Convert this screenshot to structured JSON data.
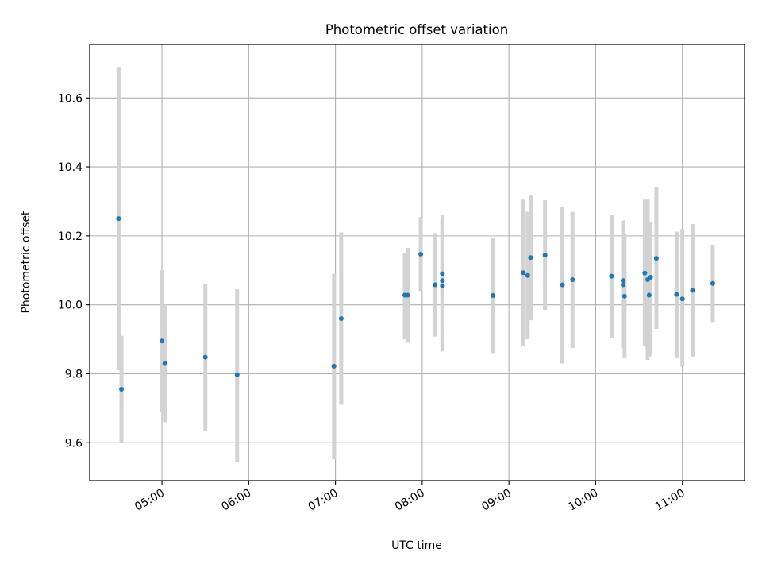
{
  "chart_data": {
    "type": "scatter",
    "title": "Photometric offset variation",
    "xlabel": "UTC time",
    "ylabel": "Photometric offset",
    "x_type": "time",
    "xlim": [
      "04:10",
      "11:43"
    ],
    "ylim": [
      9.49,
      10.755
    ],
    "x_ticks": [
      "05:00",
      "06:00",
      "07:00",
      "08:00",
      "09:00",
      "10:00",
      "11:00"
    ],
    "y_ticks": [
      9.6,
      9.8,
      10.0,
      10.2,
      10.4,
      10.6
    ],
    "y_tick_labels": [
      "9.6",
      "9.8",
      "10.0",
      "10.2",
      "10.4",
      "10.6"
    ],
    "grid": true,
    "marker_color": "#1f77b4",
    "errorbar_color": "#d3d3d3",
    "points": [
      {
        "x": "04:30",
        "y": 10.25,
        "ylow": 9.81,
        "yhigh": 10.69
      },
      {
        "x": "04:32",
        "y": 9.755,
        "ylow": 9.6,
        "yhigh": 9.91
      },
      {
        "x": "05:00",
        "y": 9.895,
        "ylow": 9.69,
        "yhigh": 10.1
      },
      {
        "x": "05:02",
        "y": 9.83,
        "ylow": 9.66,
        "yhigh": 10.0
      },
      {
        "x": "05:30",
        "y": 9.848,
        "ylow": 9.635,
        "yhigh": 10.06
      },
      {
        "x": "05:52",
        "y": 9.797,
        "ylow": 9.545,
        "yhigh": 10.045
      },
      {
        "x": "06:59",
        "y": 9.822,
        "ylow": 9.552,
        "yhigh": 10.09
      },
      {
        "x": "07:04",
        "y": 9.96,
        "ylow": 9.71,
        "yhigh": 10.21
      },
      {
        "x": "07:48",
        "y": 10.028,
        "ylow": 9.9,
        "yhigh": 10.15
      },
      {
        "x": "07:50",
        "y": 10.028,
        "ylow": 9.89,
        "yhigh": 10.165
      },
      {
        "x": "07:59",
        "y": 10.147,
        "ylow": 10.04,
        "yhigh": 10.255
      },
      {
        "x": "08:09",
        "y": 10.058,
        "ylow": 9.908,
        "yhigh": 10.208
      },
      {
        "x": "08:14",
        "y": 10.09,
        "ylow": 9.93,
        "yhigh": 10.26
      },
      {
        "x": "08:14",
        "y": 10.07,
        "ylow": 9.9,
        "yhigh": 10.245
      },
      {
        "x": "08:14",
        "y": 10.055,
        "ylow": 9.865,
        "yhigh": 10.245
      },
      {
        "x": "08:49",
        "y": 10.027,
        "ylow": 9.86,
        "yhigh": 10.195
      },
      {
        "x": "09:10",
        "y": 10.093,
        "ylow": 9.88,
        "yhigh": 10.305
      },
      {
        "x": "09:13",
        "y": 10.085,
        "ylow": 9.9,
        "yhigh": 10.27
      },
      {
        "x": "09:15",
        "y": 10.137,
        "ylow": 9.955,
        "yhigh": 10.318
      },
      {
        "x": "09:25",
        "y": 10.144,
        "ylow": 9.985,
        "yhigh": 10.303
      },
      {
        "x": "09:37",
        "y": 10.058,
        "ylow": 9.83,
        "yhigh": 10.285
      },
      {
        "x": "09:44",
        "y": 10.073,
        "ylow": 9.875,
        "yhigh": 10.27
      },
      {
        "x": "10:11",
        "y": 10.083,
        "ylow": 9.905,
        "yhigh": 10.26
      },
      {
        "x": "10:19",
        "y": 10.07,
        "ylow": 9.89,
        "yhigh": 10.245
      },
      {
        "x": "10:19",
        "y": 10.058,
        "ylow": 9.875,
        "yhigh": 10.24
      },
      {
        "x": "10:20",
        "y": 10.025,
        "ylow": 9.845,
        "yhigh": 10.205
      },
      {
        "x": "10:34",
        "y": 10.092,
        "ylow": 9.88,
        "yhigh": 10.305
      },
      {
        "x": "10:36",
        "y": 10.073,
        "ylow": 9.84,
        "yhigh": 10.305
      },
      {
        "x": "10:37",
        "y": 10.028,
        "ylow": 9.85,
        "yhigh": 10.205
      },
      {
        "x": "10:38",
        "y": 10.08,
        "ylow": 9.855,
        "yhigh": 10.24
      },
      {
        "x": "10:42",
        "y": 10.135,
        "ylow": 9.93,
        "yhigh": 10.34
      },
      {
        "x": "10:56",
        "y": 10.03,
        "ylow": 9.845,
        "yhigh": 10.212
      },
      {
        "x": "11:00",
        "y": 10.017,
        "ylow": 9.82,
        "yhigh": 10.22
      },
      {
        "x": "11:07",
        "y": 10.042,
        "ylow": 9.85,
        "yhigh": 10.234
      },
      {
        "x": "11:21",
        "y": 10.062,
        "ylow": 9.95,
        "yhigh": 10.172
      }
    ]
  }
}
